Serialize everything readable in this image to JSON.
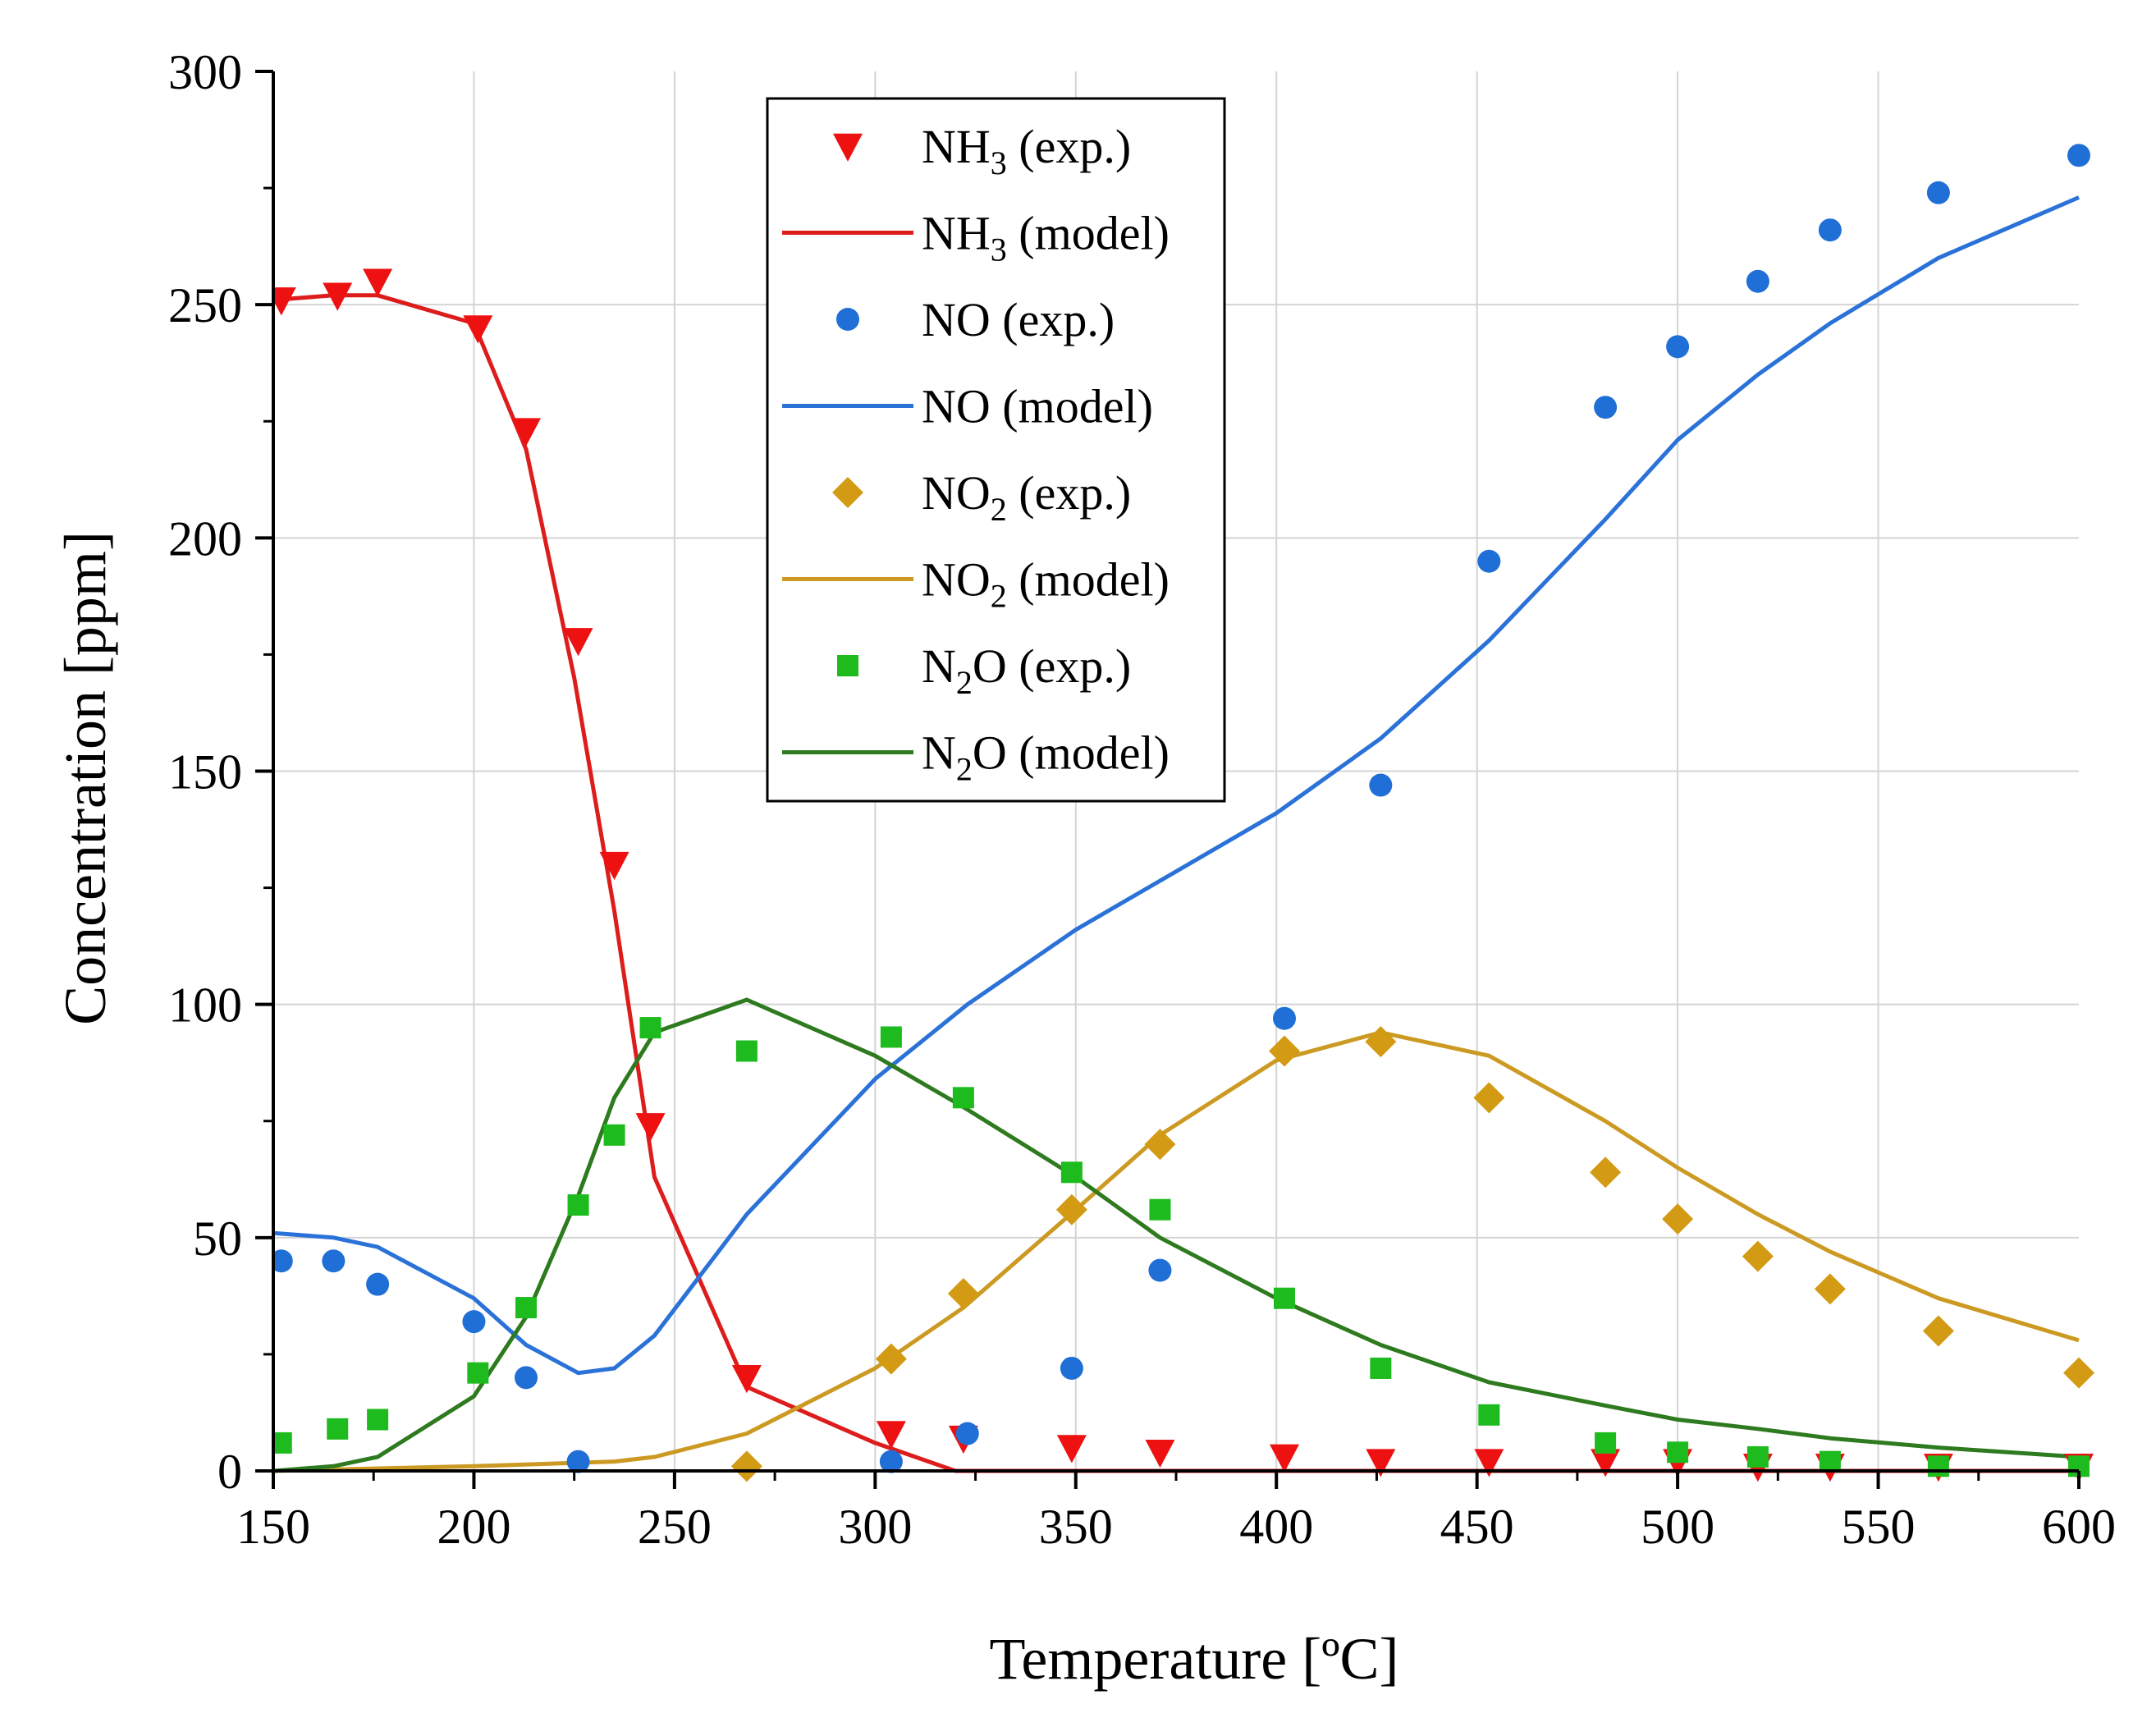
{
  "chart_data": {
    "type": "scatter",
    "title": "",
    "xlabel": "Temperature [ºC]",
    "ylabel": "Concentration [ppm]",
    "xlim": [
      150,
      600
    ],
    "ylim": [
      0,
      300
    ],
    "xticks": [
      150,
      200,
      250,
      300,
      350,
      400,
      450,
      500,
      550,
      600
    ],
    "yticks": [
      0,
      50,
      100,
      150,
      200,
      250,
      300
    ],
    "grid": true,
    "legend_position": "top-center",
    "series": [
      {
        "name": "NH3 (exp.)",
        "name_base": "NH",
        "name_sub": "3",
        "name_rest": " (exp.)",
        "kind": "scatter",
        "marker": "triangle-down",
        "color": "#ee1111",
        "x": [
          152,
          166,
          176,
          201,
          213,
          226,
          235,
          244,
          268,
          304,
          322,
          349,
          371,
          402,
          426,
          453,
          482,
          500,
          520,
          538,
          565,
          600
        ],
        "y": [
          251,
          252,
          255,
          245,
          223,
          178,
          130,
          74,
          20,
          8,
          7,
          5,
          4,
          3,
          2,
          2,
          2,
          2,
          1,
          1,
          1,
          1
        ]
      },
      {
        "name": "NH3 (model)",
        "name_base": "NH",
        "name_sub": "3",
        "name_rest": " (model)",
        "kind": "line",
        "color": "#dd1c1c",
        "x": [
          150,
          165,
          176,
          200,
          213,
          225,
          235,
          245,
          268,
          300,
          320,
          350,
          400,
          450,
          500,
          550,
          600
        ],
        "y": [
          251,
          252,
          252,
          246,
          219,
          170,
          120,
          63,
          18,
          6,
          0,
          0,
          0,
          0,
          0,
          0,
          0
        ]
      },
      {
        "name": "NO (exp.)",
        "name_base": "NO",
        "name_sub": "",
        "name_rest": " (exp.)",
        "kind": "scatter",
        "marker": "circle",
        "color": "#1f6fd6",
        "x": [
          152,
          165,
          176,
          200,
          213,
          226,
          304,
          323,
          349,
          371,
          402,
          426,
          453,
          482,
          500,
          520,
          538,
          565,
          600
        ],
        "y": [
          45,
          45,
          40,
          32,
          20,
          2,
          2,
          8,
          22,
          43,
          97,
          147,
          195,
          228,
          241,
          255,
          266,
          274,
          282
        ]
      },
      {
        "name": "NO (model)",
        "name_base": "NO",
        "name_sub": "",
        "name_rest": " (model)",
        "kind": "line",
        "color": "#2b72d8",
        "x": [
          150,
          165,
          176,
          200,
          213,
          226,
          235,
          245,
          268,
          300,
          323,
          350,
          400,
          426,
          453,
          482,
          500,
          520,
          538,
          565,
          600
        ],
        "y": [
          51,
          50,
          48,
          37,
          27,
          21,
          22,
          29,
          55,
          84,
          100,
          116,
          141,
          157,
          178,
          204,
          221,
          235,
          246,
          260,
          273
        ]
      },
      {
        "name": "NO2 (exp.)",
        "name_base": "NO",
        "name_sub": "2",
        "name_rest": " (exp.)",
        "kind": "scatter",
        "marker": "diamond",
        "color": "#d39b14",
        "x": [
          268,
          304,
          322,
          349,
          371,
          402,
          426,
          453,
          482,
          500,
          520,
          538,
          565,
          600
        ],
        "y": [
          1,
          24,
          38,
          56,
          70,
          90,
          92,
          80,
          64,
          54,
          46,
          39,
          30,
          21
        ]
      },
      {
        "name": "NO2 (model)",
        "name_base": "NO",
        "name_sub": "2",
        "name_rest": " (model)",
        "kind": "line",
        "color": "#cc9a22",
        "x": [
          150,
          200,
          235,
          245,
          268,
          300,
          322,
          350,
          371,
          400,
          426,
          453,
          482,
          500,
          520,
          538,
          565,
          600
        ],
        "y": [
          0,
          1,
          2,
          3,
          8,
          22,
          35,
          56,
          72,
          88,
          94,
          89,
          75,
          65,
          55,
          47,
          37,
          28
        ]
      },
      {
        "name": "N2O (exp.)",
        "name_base": "N",
        "name_sub": "2",
        "name_rest": "O (exp.)",
        "kind": "scatter",
        "marker": "square",
        "color": "#1ebb1e",
        "x": [
          152,
          166,
          176,
          201,
          213,
          226,
          235,
          244,
          268,
          304,
          322,
          349,
          371,
          402,
          426,
          453,
          482,
          500,
          520,
          538,
          565,
          600
        ],
        "y": [
          6,
          9,
          11,
          21,
          35,
          57,
          72,
          95,
          90,
          93,
          80,
          64,
          56,
          37,
          22,
          12,
          6,
          4,
          3,
          2,
          1,
          1
        ]
      },
      {
        "name": "N2O (model)",
        "name_base": "N",
        "name_sub": "2",
        "name_rest": "O (model)",
        "kind": "line",
        "color": "#2e7a1e",
        "x": [
          150,
          165,
          176,
          200,
          213,
          226,
          235,
          245,
          268,
          300,
          322,
          350,
          371,
          400,
          426,
          453,
          482,
          500,
          520,
          538,
          565,
          600
        ],
        "y": [
          0,
          1,
          3,
          16,
          33,
          59,
          80,
          94,
          101,
          89,
          78,
          63,
          50,
          37,
          27,
          19,
          14,
          11,
          9,
          7,
          5,
          3
        ]
      }
    ]
  }
}
